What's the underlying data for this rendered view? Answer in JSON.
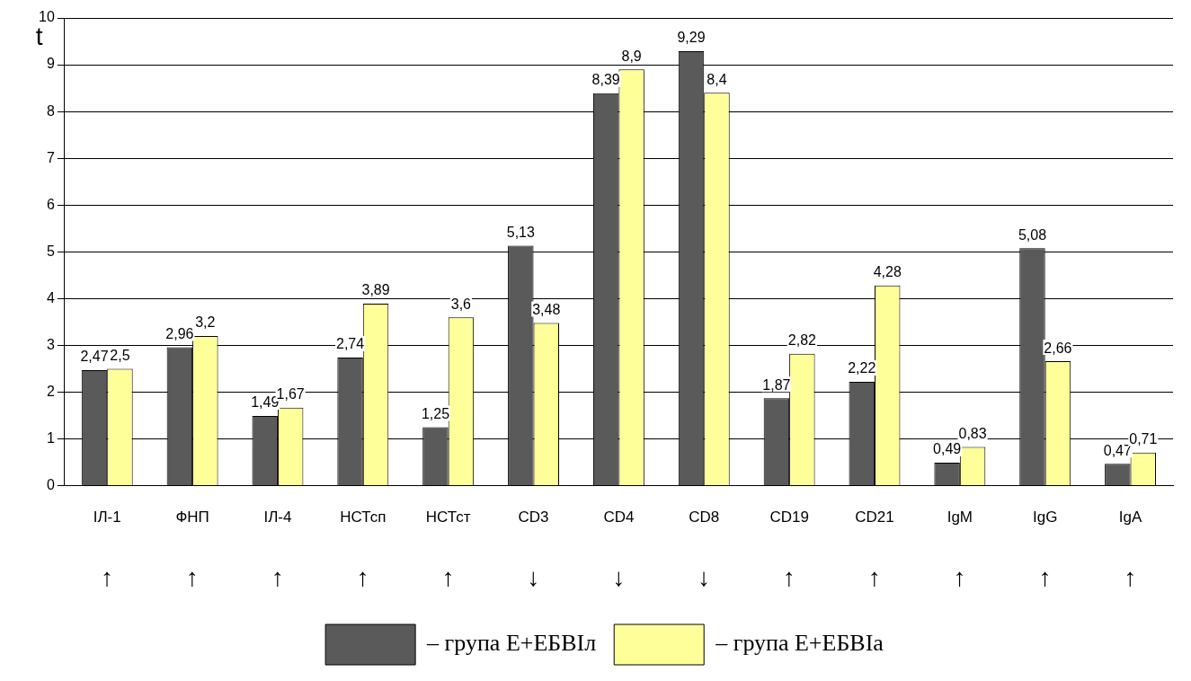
{
  "chart_data": {
    "type": "bar",
    "ylabel": "t",
    "categories": [
      "ІЛ-1",
      "ФНП",
      "ІЛ-4",
      "НСТсп",
      "НСТст",
      "CD3",
      "CD4",
      "CD8",
      "CD19",
      "CD21",
      "IgM",
      "IgG",
      "IgA"
    ],
    "series": [
      {
        "name": "– група Е+ЕБВІл",
        "color": "#5a5a5a",
        "values": [
          2.47,
          2.96,
          1.49,
          2.74,
          1.25,
          5.13,
          8.39,
          9.29,
          1.87,
          2.22,
          0.49,
          5.08,
          0.47
        ],
        "value_labels": [
          "2,47",
          "2,96",
          "1,49",
          "2,74",
          "1,25",
          "5,13",
          "8,39",
          "9,29",
          "1,87",
          "2,22",
          "0,49",
          "5,08",
          "0,47"
        ]
      },
      {
        "name": "– група Е+ЕБВІа",
        "color": "#ffff99",
        "values": [
          2.5,
          3.2,
          1.67,
          3.89,
          3.6,
          3.48,
          8.9,
          8.4,
          2.82,
          4.28,
          0.83,
          2.66,
          0.71
        ],
        "value_labels": [
          "2,5",
          "3,2",
          "1,67",
          "3,89",
          "3,6",
          "3,48",
          "8,9",
          "8,4",
          "2,82",
          "4,28",
          "0,83",
          "2,66",
          "0,71"
        ]
      }
    ],
    "ylim": [
      0,
      10
    ],
    "yticks": [
      0,
      1,
      2,
      3,
      4,
      5,
      6,
      7,
      8,
      9,
      10
    ],
    "grid": "y",
    "legend": "bottom",
    "annotations": [
      "↑",
      "↑",
      "↑",
      "↑",
      "↑",
      "↓",
      "↓",
      "↓",
      "↑",
      "↑",
      "↑",
      "↑",
      "↑"
    ]
  }
}
